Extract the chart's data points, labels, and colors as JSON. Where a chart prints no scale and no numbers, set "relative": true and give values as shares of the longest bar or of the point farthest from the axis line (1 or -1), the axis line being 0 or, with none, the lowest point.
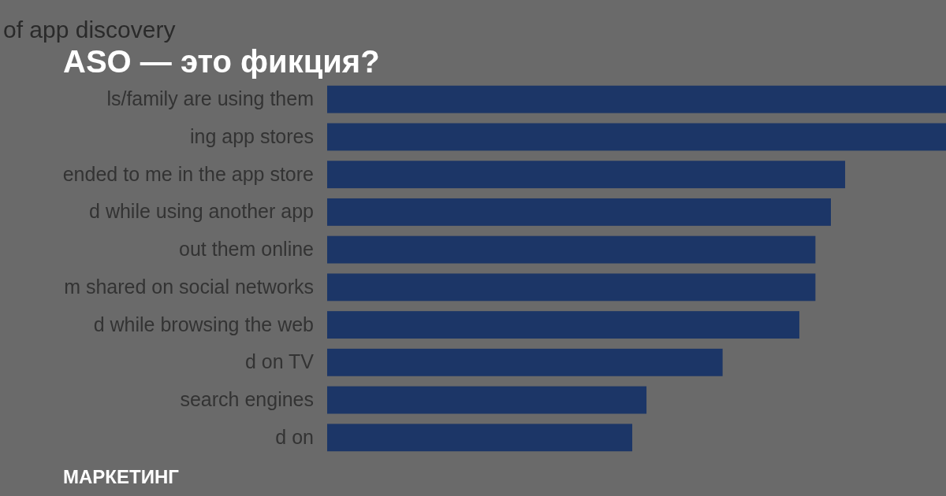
{
  "chart_data": {
    "type": "bar",
    "orientation": "horizontal",
    "relative": true,
    "title": "of app discovery",
    "categories": [
      "ls/family are using them",
      "ing app stores",
      "ended to me in the app store",
      "d while using another app",
      "out them online",
      "m shared on social networks",
      "d while browsing the web",
      "d on TV",
      "search engines",
      "d on"
    ],
    "values": [
      1,
      1,
      0.837,
      0.814,
      0.789,
      0.789,
      0.763,
      0.639,
      0.516,
      0.493
    ],
    "color": "#1c3667",
    "annotations": [
      "ASO — это фикция?",
      "МАРКЕТИНГ"
    ]
  }
}
